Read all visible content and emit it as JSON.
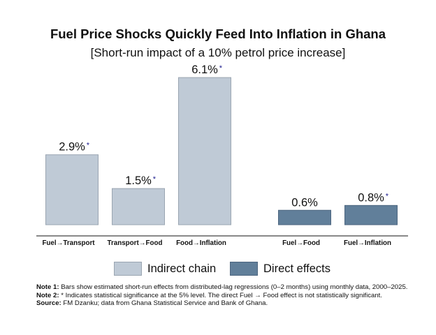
{
  "chart_data": {
    "type": "bar",
    "title": "Fuel Price Shocks Quickly Feed Into Inflation in Ghana",
    "subtitle": "[Short-run impact of a 10% petrol price increase]",
    "ylim": [
      0,
      7
    ],
    "categories": [
      "Fuel→Transport",
      "Transport→Food",
      "Food→Inflation",
      "Fuel→Food",
      "Fuel→Inflation"
    ],
    "values": [
      2.9,
      1.5,
      6.1,
      0.6,
      0.8
    ],
    "value_labels": [
      "2.9%",
      "1.5%",
      "6.1%",
      "0.6%",
      "0.8%"
    ],
    "significant": [
      true,
      true,
      true,
      false,
      true
    ],
    "significance_marker": "*",
    "groups": [
      "indirect",
      "indirect",
      "indirect",
      "direct",
      "direct"
    ],
    "series": [
      {
        "key": "indirect",
        "name": "Indirect chain",
        "color": "#bfcad6"
      },
      {
        "key": "direct",
        "name": "Direct effects",
        "color": "#617f9a"
      }
    ],
    "legend_position": "bottom"
  },
  "notes": [
    {
      "label": "Note 1:",
      "text": "Bars show estimated short-run effects from distributed-lag regressions (0–2 months) using monthly data, 2000–2025."
    },
    {
      "label": "Note 2:",
      "text": "* Indicates statistical significance at the 5% level. The direct Fuel → Food effect is not statistically significant."
    },
    {
      "label": "Source:",
      "text": "FM Dzanku; data from Ghana Statistical Service and Bank of Ghana."
    }
  ]
}
